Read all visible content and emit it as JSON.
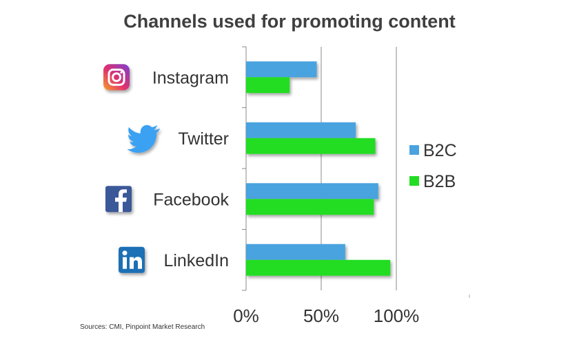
{
  "chart_data": {
    "type": "bar",
    "orientation": "horizontal",
    "title": "Channels used for promoting content",
    "categories": [
      "Instagram",
      "Twitter",
      "Facebook",
      "LinkedIn"
    ],
    "series": [
      {
        "name": "B2C",
        "color": "#4aa3df",
        "values": [
          47,
          73,
          88,
          66
        ]
      },
      {
        "name": "B2B",
        "color": "#22dd22",
        "values": [
          29,
          86,
          85,
          96
        ]
      }
    ],
    "xlim": [
      0,
      100
    ],
    "xticks": [
      0,
      50,
      100
    ],
    "xtick_labels": [
      "0%",
      "50%",
      "100%"
    ],
    "grid": "vertical",
    "legend_position": "right",
    "icons": [
      "instagram-icon",
      "twitter-icon",
      "facebook-icon",
      "linkedin-icon"
    ]
  },
  "footer": {
    "source": "Sources: CMI, Pinpoint Market Research"
  }
}
